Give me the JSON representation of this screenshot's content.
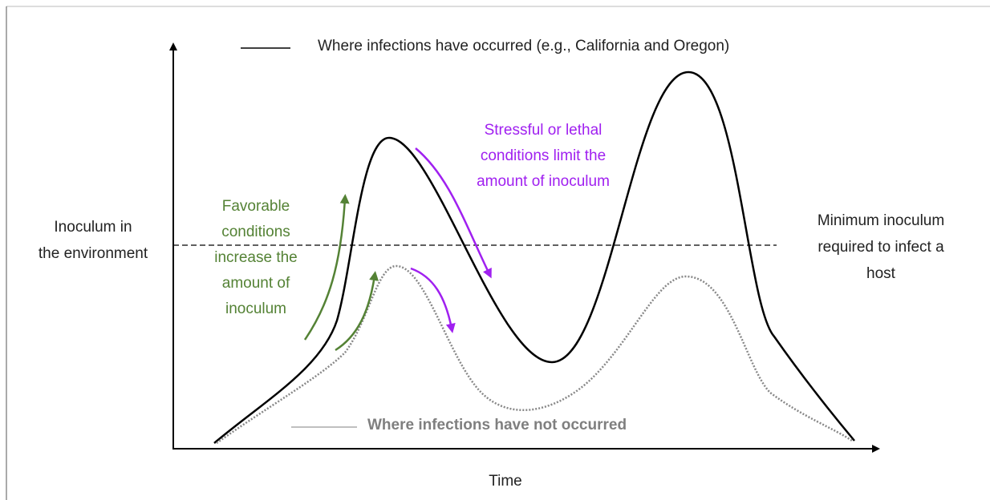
{
  "legend": {
    "infected": "Where infections have occurred (e.g., California and Oregon)",
    "not_infected": "Where infections have not occurred"
  },
  "y_axis_label": [
    "Inoculum in",
    "the environment"
  ],
  "x_axis_label": "Time",
  "threshold_label": [
    "Minimum inoculum",
    "required to infect a",
    "host"
  ],
  "favorable_note": [
    "Favorable",
    "conditions",
    "increase the",
    "amount of",
    "inoculum"
  ],
  "stressful_note": [
    "Stressful or lethal",
    "conditions limit the",
    "amount of inoculum"
  ]
}
